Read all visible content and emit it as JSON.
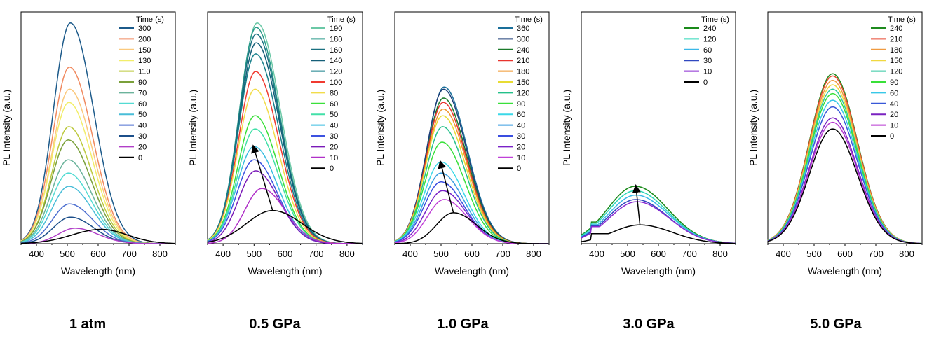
{
  "axis_common": {
    "xlabel": "Wavelength (nm)",
    "ylabel": "PL Intensity (a.u.)",
    "legend_title": "Time (s)",
    "xlim": [
      350,
      850
    ],
    "ylim": [
      0,
      1.05
    ],
    "xticks": [
      400,
      500,
      600,
      700,
      800
    ],
    "ticklabels": [
      "400",
      "500",
      "600",
      "700",
      "800"
    ]
  },
  "chart_data": [
    {
      "type": "line",
      "caption": "1 atm",
      "series": [
        {
          "name": "300",
          "color": "#1c5a8a",
          "peak_x": 510,
          "peak_y": 1.0
        },
        {
          "name": "200",
          "color": "#f08a60",
          "peak_x": 507,
          "peak_y": 0.8
        },
        {
          "name": "150",
          "color": "#fbc97d",
          "peak_x": 507,
          "peak_y": 0.7
        },
        {
          "name": "130",
          "color": "#f2ee6a",
          "peak_x": 505,
          "peak_y": 0.64
        },
        {
          "name": "110",
          "color": "#bcc93e",
          "peak_x": 505,
          "peak_y": 0.53
        },
        {
          "name": "90",
          "color": "#7aa03a",
          "peak_x": 503,
          "peak_y": 0.47
        },
        {
          "name": "70",
          "color": "#6bb39b",
          "peak_x": 503,
          "peak_y": 0.38
        },
        {
          "name": "60",
          "color": "#52dbd3",
          "peak_x": 503,
          "peak_y": 0.32
        },
        {
          "name": "50",
          "color": "#49bdd8",
          "peak_x": 505,
          "peak_y": 0.26
        },
        {
          "name": "40",
          "color": "#4d6fd0",
          "peak_x": 507,
          "peak_y": 0.18
        },
        {
          "name": "30",
          "color": "#1c4f8a",
          "peak_x": 510,
          "peak_y": 0.12
        },
        {
          "name": "20",
          "color": "#b13fc8",
          "peak_x": 525,
          "peak_y": 0.07
        },
        {
          "name": "0",
          "color": "#000000",
          "peak_x": 610,
          "peak_y": 0.065
        }
      ]
    },
    {
      "type": "line",
      "caption": "0.5 GPa",
      "series": [
        {
          "name": "190",
          "color": "#6bc8a6",
          "peak_x": 510,
          "peak_y": 1.0
        },
        {
          "name": "180",
          "color": "#2a9a8a",
          "peak_x": 507,
          "peak_y": 0.98
        },
        {
          "name": "160",
          "color": "#1a7080",
          "peak_x": 507,
          "peak_y": 0.95
        },
        {
          "name": "140",
          "color": "#155f78",
          "peak_x": 507,
          "peak_y": 0.91
        },
        {
          "name": "120",
          "color": "#167f8a",
          "peak_x": 505,
          "peak_y": 0.86
        },
        {
          "name": "100",
          "color": "#f03a30",
          "peak_x": 505,
          "peak_y": 0.78
        },
        {
          "name": "80",
          "color": "#f2dc4a",
          "peak_x": 503,
          "peak_y": 0.7
        },
        {
          "name": "60",
          "color": "#3ae03a",
          "peak_x": 503,
          "peak_y": 0.58
        },
        {
          "name": "50",
          "color": "#42e0a8",
          "peak_x": 503,
          "peak_y": 0.52
        },
        {
          "name": "40",
          "color": "#3bbde0",
          "peak_x": 500,
          "peak_y": 0.44
        },
        {
          "name": "30",
          "color": "#3c52e0",
          "peak_x": 500,
          "peak_y": 0.38
        },
        {
          "name": "20",
          "color": "#7a1ab8",
          "peak_x": 505,
          "peak_y": 0.33
        },
        {
          "name": "10",
          "color": "#b030c8",
          "peak_x": 525,
          "peak_y": 0.25
        },
        {
          "name": "0",
          "color": "#000000",
          "peak_x": 560,
          "peak_y": 0.15
        }
      ]
    },
    {
      "type": "line",
      "caption": "1.0 GPa",
      "series": [
        {
          "name": "360",
          "color": "#1a6f9a",
          "peak_x": 510,
          "peak_y": 0.71
        },
        {
          "name": "300",
          "color": "#1d3e78",
          "peak_x": 508,
          "peak_y": 0.7
        },
        {
          "name": "240",
          "color": "#1a7a2a",
          "peak_x": 508,
          "peak_y": 0.66
        },
        {
          "name": "210",
          "color": "#e8342e",
          "peak_x": 507,
          "peak_y": 0.64
        },
        {
          "name": "180",
          "color": "#f0962e",
          "peak_x": 507,
          "peak_y": 0.61
        },
        {
          "name": "150",
          "color": "#e8dc32",
          "peak_x": 505,
          "peak_y": 0.58
        },
        {
          "name": "120",
          "color": "#24c08a",
          "peak_x": 505,
          "peak_y": 0.53
        },
        {
          "name": "90",
          "color": "#38e03a",
          "peak_x": 503,
          "peak_y": 0.46
        },
        {
          "name": "60",
          "color": "#3ad8e8",
          "peak_x": 500,
          "peak_y": 0.37
        },
        {
          "name": "40",
          "color": "#3a9ee0",
          "peak_x": 500,
          "peak_y": 0.32
        },
        {
          "name": "30",
          "color": "#3a4ee0",
          "peak_x": 500,
          "peak_y": 0.28
        },
        {
          "name": "20",
          "color": "#7a22c8",
          "peak_x": 505,
          "peak_y": 0.24
        },
        {
          "name": "10",
          "color": "#c040d8",
          "peak_x": 510,
          "peak_y": 0.2
        },
        {
          "name": "0",
          "color": "#000000",
          "peak_x": 540,
          "peak_y": 0.14
        }
      ]
    },
    {
      "type": "line",
      "caption": "3.0 GPa",
      "series": [
        {
          "name": "240",
          "color": "#1a8a1a",
          "peak_x": 525,
          "peak_y": 0.26
        },
        {
          "name": "120",
          "color": "#2ad8b8",
          "peak_x": 525,
          "peak_y": 0.24
        },
        {
          "name": "60",
          "color": "#3ab8e8",
          "peak_x": 527,
          "peak_y": 0.22
        },
        {
          "name": "30",
          "color": "#3048c0",
          "peak_x": 527,
          "peak_y": 0.2
        },
        {
          "name": "10",
          "color": "#8a2ad0",
          "peak_x": 530,
          "peak_y": 0.19
        },
        {
          "name": "0",
          "color": "#000000",
          "peak_x": 540,
          "peak_y": 0.085
        }
      ]
    },
    {
      "type": "line",
      "caption": "5.0 GPa",
      "series": [
        {
          "name": "240",
          "color": "#1e8a1e",
          "peak_x": 560,
          "peak_y": 0.77
        },
        {
          "name": "210",
          "color": "#e84830",
          "peak_x": 560,
          "peak_y": 0.76
        },
        {
          "name": "180",
          "color": "#f09a40",
          "peak_x": 560,
          "peak_y": 0.74
        },
        {
          "name": "150",
          "color": "#f0d840",
          "peak_x": 560,
          "peak_y": 0.72
        },
        {
          "name": "120",
          "color": "#30c8a0",
          "peak_x": 560,
          "peak_y": 0.7
        },
        {
          "name": "90",
          "color": "#38e038",
          "peak_x": 560,
          "peak_y": 0.68
        },
        {
          "name": "60",
          "color": "#38c8e8",
          "peak_x": 560,
          "peak_y": 0.65
        },
        {
          "name": "40",
          "color": "#3858d8",
          "peak_x": 560,
          "peak_y": 0.62
        },
        {
          "name": "20",
          "color": "#7a22c0",
          "peak_x": 560,
          "peak_y": 0.57
        },
        {
          "name": "10",
          "color": "#b838d0",
          "peak_x": 560,
          "peak_y": 0.55
        },
        {
          "name": "0",
          "color": "#000000",
          "peak_x": 560,
          "peak_y": 0.52
        }
      ]
    }
  ]
}
